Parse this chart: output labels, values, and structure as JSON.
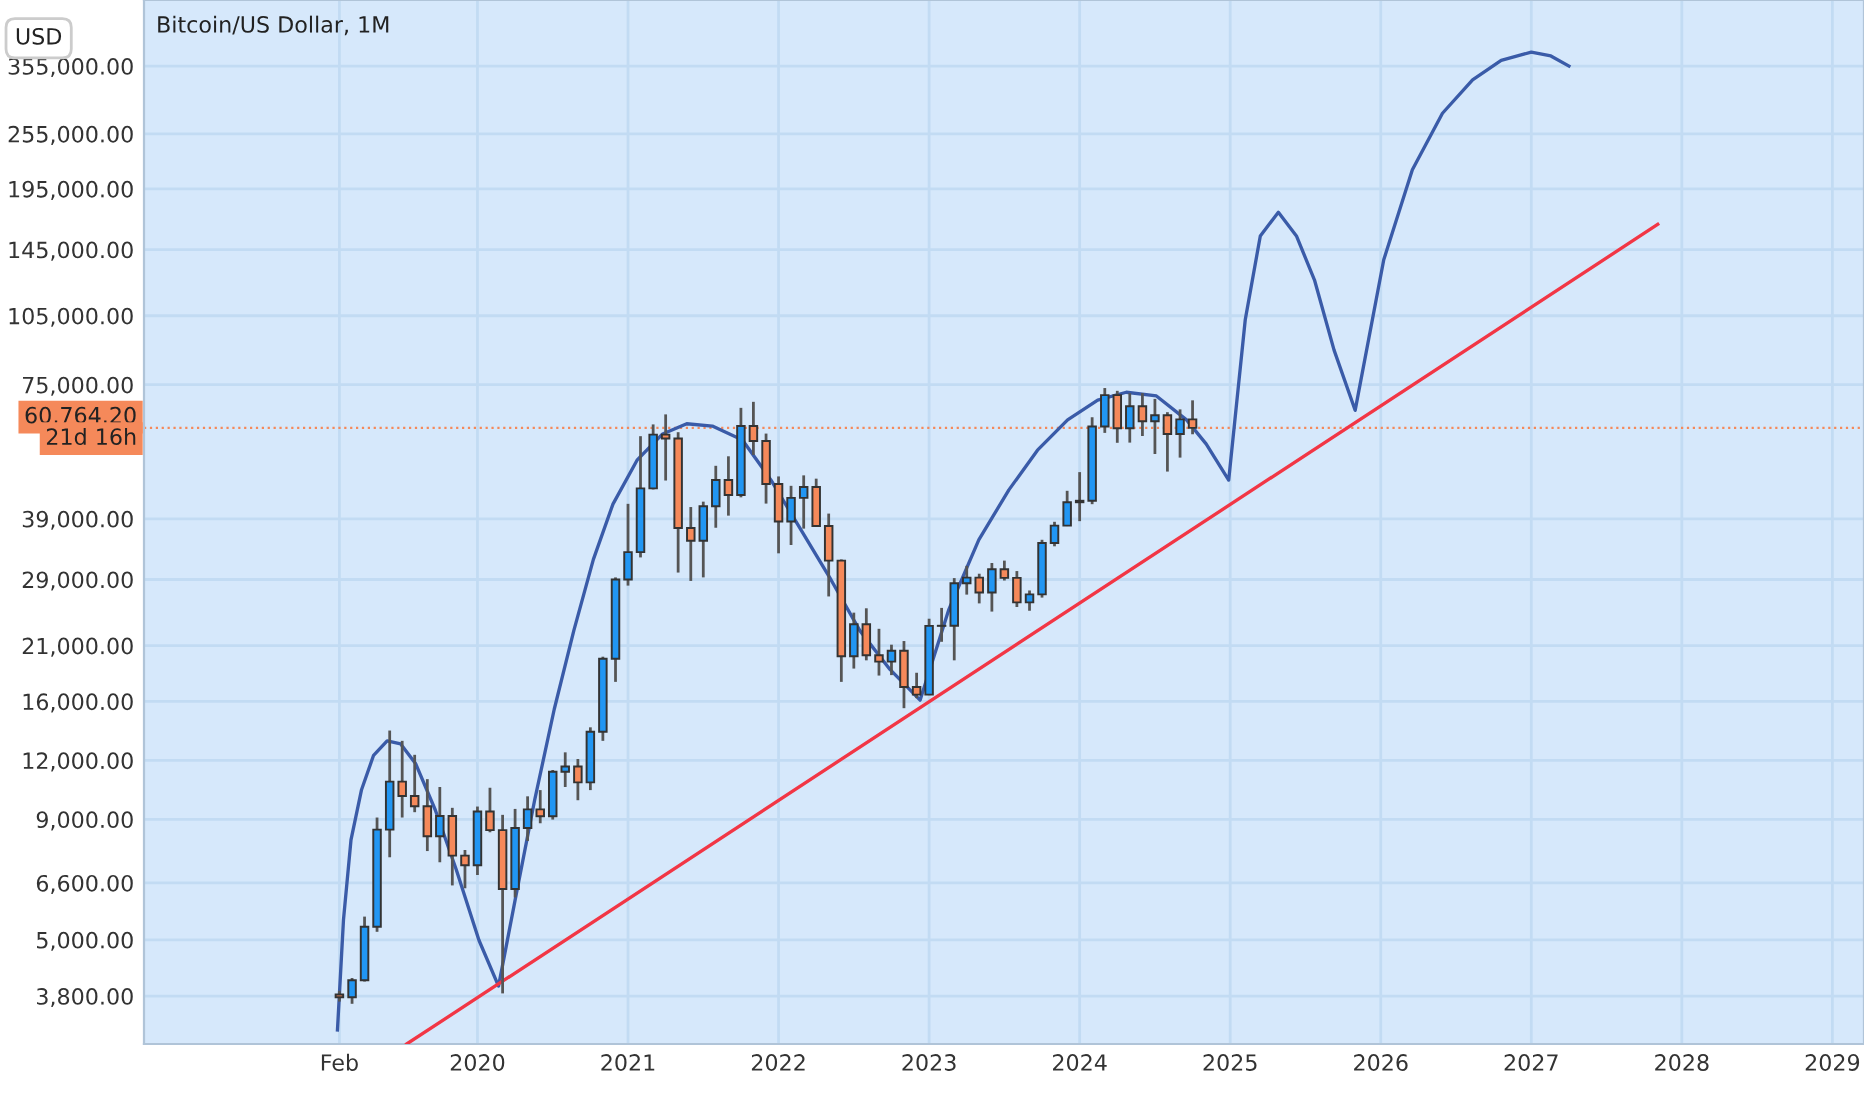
{
  "chart_data": {
    "type": "candlestick",
    "title": "Bitcoin/US Dollar, 1M",
    "ylabel": "USD",
    "log": true,
    "grid": true,
    "x": [
      2019.083,
      2019.167,
      2019.25,
      2019.333,
      2019.417,
      2019.5,
      2019.583,
      2019.667,
      2019.75,
      2019.833,
      2019.917,
      2020.0,
      2020.083,
      2020.167,
      2020.25,
      2020.333,
      2020.417,
      2020.5,
      2020.583,
      2020.667,
      2020.75,
      2020.833,
      2020.917,
      2021.0,
      2021.083,
      2021.167,
      2021.25,
      2021.333,
      2021.417,
      2021.5,
      2021.583,
      2021.667,
      2021.75,
      2021.833,
      2021.917,
      2022.0,
      2022.083,
      2022.167,
      2022.25,
      2022.333,
      2022.417,
      2022.5,
      2022.583,
      2022.667,
      2022.75,
      2022.833,
      2022.917,
      2023.0,
      2023.083,
      2023.167,
      2023.25,
      2023.333,
      2023.417,
      2023.5,
      2023.583,
      2023.667,
      2023.75,
      2023.833,
      2023.917,
      2024.0,
      2024.083,
      2024.167,
      2024.25,
      2024.333,
      2024.417,
      2024.5,
      2024.583,
      2024.667,
      2024.75
    ],
    "ohlc": [
      [
        3830,
        3900,
        3700,
        3780
      ],
      [
        3780,
        4150,
        3660,
        4105
      ],
      [
        4105,
        5600,
        4080,
        5330
      ],
      [
        5330,
        9080,
        5200,
        8560
      ],
      [
        8560,
        13880,
        7480,
        10820
      ],
      [
        10820,
        13200,
        9080,
        10085
      ],
      [
        10085,
        12330,
        9320,
        9590
      ],
      [
        9590,
        10950,
        7710,
        8290
      ],
      [
        8290,
        10540,
        7300,
        9150
      ],
      [
        9150,
        9520,
        6520,
        7540
      ],
      [
        7540,
        7750,
        6430,
        7195
      ],
      [
        7195,
        9580,
        6860,
        9350
      ],
      [
        9350,
        10500,
        8450,
        8540
      ],
      [
        8540,
        9200,
        3850,
        6410
      ],
      [
        6410,
        9470,
        6150,
        8630
      ],
      [
        8630,
        10070,
        8100,
        9450
      ],
      [
        9450,
        10380,
        8830,
        9140
      ],
      [
        9140,
        11450,
        8990,
        11350
      ],
      [
        11350,
        12480,
        10540,
        11650
      ],
      [
        11650,
        12080,
        9880,
        10780
      ],
      [
        10780,
        14100,
        10380,
        13800
      ],
      [
        13800,
        19900,
        13200,
        19700
      ],
      [
        19700,
        29300,
        17600,
        28990
      ],
      [
        28990,
        41950,
        28150,
        33140
      ],
      [
        33140,
        58350,
        32300,
        45240
      ],
      [
        45240,
        61800,
        45000,
        58800
      ],
      [
        58800,
        64900,
        47000,
        57700
      ],
      [
        57700,
        59500,
        30000,
        37300
      ],
      [
        37300,
        41300,
        28800,
        35040
      ],
      [
        35040,
        42400,
        29300,
        41460
      ],
      [
        41460,
        50500,
        37330,
        47100
      ],
      [
        47100,
        52900,
        39600,
        43800
      ],
      [
        43800,
        67000,
        43300,
        61300
      ],
      [
        61300,
        69000,
        53250,
        57000
      ],
      [
        57000,
        59100,
        42000,
        46200
      ],
      [
        46200,
        47950,
        32950,
        38470
      ],
      [
        38470,
        45800,
        34320,
        43190
      ],
      [
        43190,
        48200,
        37170,
        45530
      ],
      [
        45530,
        47430,
        37500,
        37640
      ],
      [
        37640,
        40000,
        26700,
        31800
      ],
      [
        31800,
        31980,
        17600,
        19940
      ],
      [
        19940,
        24670,
        18780,
        23310
      ],
      [
        23310,
        25200,
        19550,
        20050
      ],
      [
        20050,
        22800,
        18150,
        19430
      ],
      [
        19430,
        21100,
        18190,
        20490
      ],
      [
        20490,
        21480,
        15480,
        17170
      ],
      [
        17170,
        18400,
        16260,
        16540
      ],
      [
        16540,
        23950,
        16500,
        23130
      ],
      [
        23130,
        25250,
        21400,
        23140
      ],
      [
        23140,
        29200,
        19550,
        28480
      ],
      [
        28480,
        31000,
        26940,
        29270
      ],
      [
        29270,
        29830,
        25810,
        27220
      ],
      [
        27220,
        31430,
        24800,
        30480
      ],
      [
        30480,
        31800,
        28860,
        29230
      ],
      [
        29230,
        30220,
        25360,
        25940
      ],
      [
        25940,
        27490,
        24900,
        26970
      ],
      [
        26970,
        35200,
        26550,
        34650
      ],
      [
        34650,
        38430,
        34100,
        37720
      ],
      [
        37720,
        44700,
        37640,
        42280
      ],
      [
        42280,
        48970,
        38550,
        42580
      ],
      [
        42580,
        64000,
        41880,
        61180
      ],
      [
        61180,
        73800,
        59300,
        71300
      ],
      [
        71300,
        72800,
        56500,
        60670
      ],
      [
        60670,
        71950,
        56550,
        67520
      ],
      [
        67520,
        71980,
        58400,
        62750
      ],
      [
        62750,
        70000,
        53500,
        64650
      ],
      [
        64650,
        65600,
        49100,
        58980
      ],
      [
        58980,
        66500,
        52560,
        63330
      ],
      [
        63330,
        69500,
        58900,
        60764
      ]
    ],
    "colors": [
      "#f5895a",
      "#2196f3",
      "#2196f3",
      "#2196f3",
      "#2196f3",
      "#f5895a",
      "#f5895a",
      "#f5895a",
      "#2196f3",
      "#f5895a",
      "#f5895a",
      "#2196f3",
      "#f5895a",
      "#f5895a",
      "#2196f3",
      "#2196f3",
      "#f5895a",
      "#2196f3",
      "#2196f3",
      "#f5895a",
      "#2196f3",
      "#2196f3",
      "#2196f3",
      "#2196f3",
      "#2196f3",
      "#2196f3",
      "#f5895a",
      "#f5895a",
      "#f5895a",
      "#2196f3",
      "#2196f3",
      "#f5895a",
      "#2196f3",
      "#f5895a",
      "#f5895a",
      "#f5895a",
      "#2196f3",
      "#2196f3",
      "#f5895a",
      "#f5895a",
      "#f5895a",
      "#2196f3",
      "#f5895a",
      "#f5895a",
      "#2196f3",
      "#f5895a",
      "#f5895a",
      "#2196f3",
      "#2196f3",
      "#2196f3",
      "#2196f3",
      "#f5895a",
      "#2196f3",
      "#f5895a",
      "#f5895a",
      "#2196f3",
      "#2196f3",
      "#2196f3",
      "#2196f3",
      "#2196f3",
      "#2196f3",
      "#2196f3",
      "#f5895a",
      "#2196f3",
      "#f5895a",
      "#2196f3",
      "#f5895a",
      "#2196f3",
      "#f5895a"
    ],
    "series": [
      {
        "type": "line",
        "color": "#3a5ba8",
        "x": [
          2019.07,
          2019.11,
          2019.16,
          2019.23,
          2019.31,
          2019.4,
          2019.49,
          2019.59,
          2019.72,
          2019.86,
          2020.01,
          2020.14,
          2020.25,
          2020.38,
          2020.51,
          2020.64,
          2020.77,
          2020.9,
          2021.06,
          2021.23,
          2021.39,
          2021.56,
          2021.76,
          2021.95,
          2022.15,
          2022.35,
          2022.54,
          2022.74,
          2022.94,
          2023.13,
          2023.33,
          2023.53,
          2023.72,
          2023.92,
          2024.12,
          2024.31,
          2024.51,
          2024.71,
          2024.84,
          2024.99,
          2025.1,
          2025.2,
          2025.32,
          2025.44,
          2025.56,
          2025.69,
          2025.83,
          2026.02,
          2026.21,
          2026.41,
          2026.61,
          2026.8,
          2027.0,
          2027.13,
          2027.25
        ],
        "values": [
          3220,
          5510,
          8140,
          10400,
          12300,
          13200,
          13000,
          11800,
          9420,
          7030,
          4990,
          3990,
          6070,
          9890,
          15400,
          22600,
          32000,
          41900,
          51900,
          59000,
          62000,
          61300,
          57300,
          47100,
          36900,
          28900,
          22600,
          18700,
          16100,
          25000,
          35200,
          44900,
          54500,
          63200,
          69600,
          72300,
          71000,
          63200,
          56200,
          47100,
          103000,
          155000,
          174000,
          155000,
          125000,
          88800,
          66200,
          138000,
          214000,
          282000,
          332000,
          365000,
          380000,
          373000,
          355000
        ]
      },
      {
        "type": "line",
        "color": "#f23645",
        "x": [
          2019.53,
          2027.84
        ],
        "values": [
          3008,
          164000
        ]
      }
    ],
    "ref_lines": [
      {
        "axis": "y",
        "value": 60764.2,
        "label": "60,764.20",
        "color": "#f5895a",
        "line_style": "dotted"
      }
    ],
    "annotations": [
      "21d 16h"
    ],
    "xlim": [
      2017.785,
      2029.21
    ],
    "xticks": [
      {
        "value": 2019.083,
        "label": "Feb"
      },
      2020,
      2021,
      2022,
      2023,
      2024,
      2025,
      2026,
      2027,
      2028,
      2029
    ],
    "ylim": [
      3008,
      490000
    ],
    "yticks": [
      {
        "value": 3800,
        "label": "3,800.00"
      },
      {
        "value": 5000,
        "label": "5,000.00"
      },
      {
        "value": 6600,
        "label": "6,600.00"
      },
      {
        "value": 9000,
        "label": "9,000.00"
      },
      {
        "value": 12000,
        "label": "12,000.00"
      },
      {
        "value": 16000,
        "label": "16,000.00"
      },
      {
        "value": 21000,
        "label": "21,000.00"
      },
      {
        "value": 29000,
        "label": "29,000.00"
      },
      {
        "value": 39000,
        "label": "39,000.00"
      },
      {
        "value": 75000,
        "label": "75,000.00"
      },
      {
        "value": 105000,
        "label": "105,000.00"
      },
      {
        "value": 145000,
        "label": "145,000.00"
      },
      {
        "value": 195000,
        "label": "195,000.00"
      },
      {
        "value": 255000,
        "label": "255,000.00"
      },
      {
        "value": 355000,
        "label": "355,000.00"
      }
    ]
  }
}
